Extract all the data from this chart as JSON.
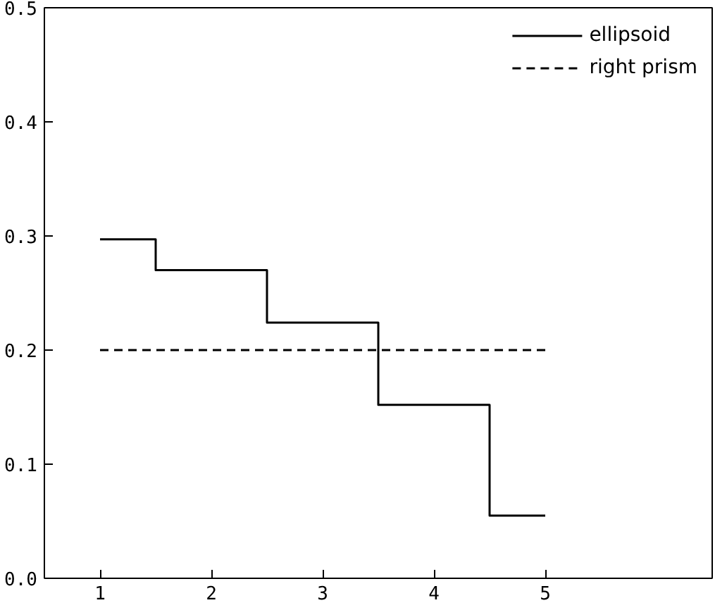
{
  "chart_data": {
    "type": "step",
    "x": [
      1,
      2,
      3,
      4,
      5
    ],
    "xlim": [
      0.5,
      6.5
    ],
    "xticks": [
      1,
      2,
      3,
      4,
      5
    ],
    "ylim": [
      0,
      0.5
    ],
    "yticks": [
      {
        "value": 0,
        "label": "0.0"
      },
      0.1,
      0.2,
      0.3,
      0.4,
      0.5
    ],
    "grid": false,
    "legend": "top right",
    "series": [
      {
        "name": "ellipsoid",
        "color": "#000000",
        "line_style": "solid",
        "values": [
          0.297,
          0.27,
          0.224,
          0.152,
          0.055
        ]
      },
      {
        "name": "right prism",
        "color": "#000000",
        "line_style": "dashed",
        "values": [
          0.2,
          0.2,
          0.2,
          0.2,
          0.2
        ]
      }
    ]
  }
}
